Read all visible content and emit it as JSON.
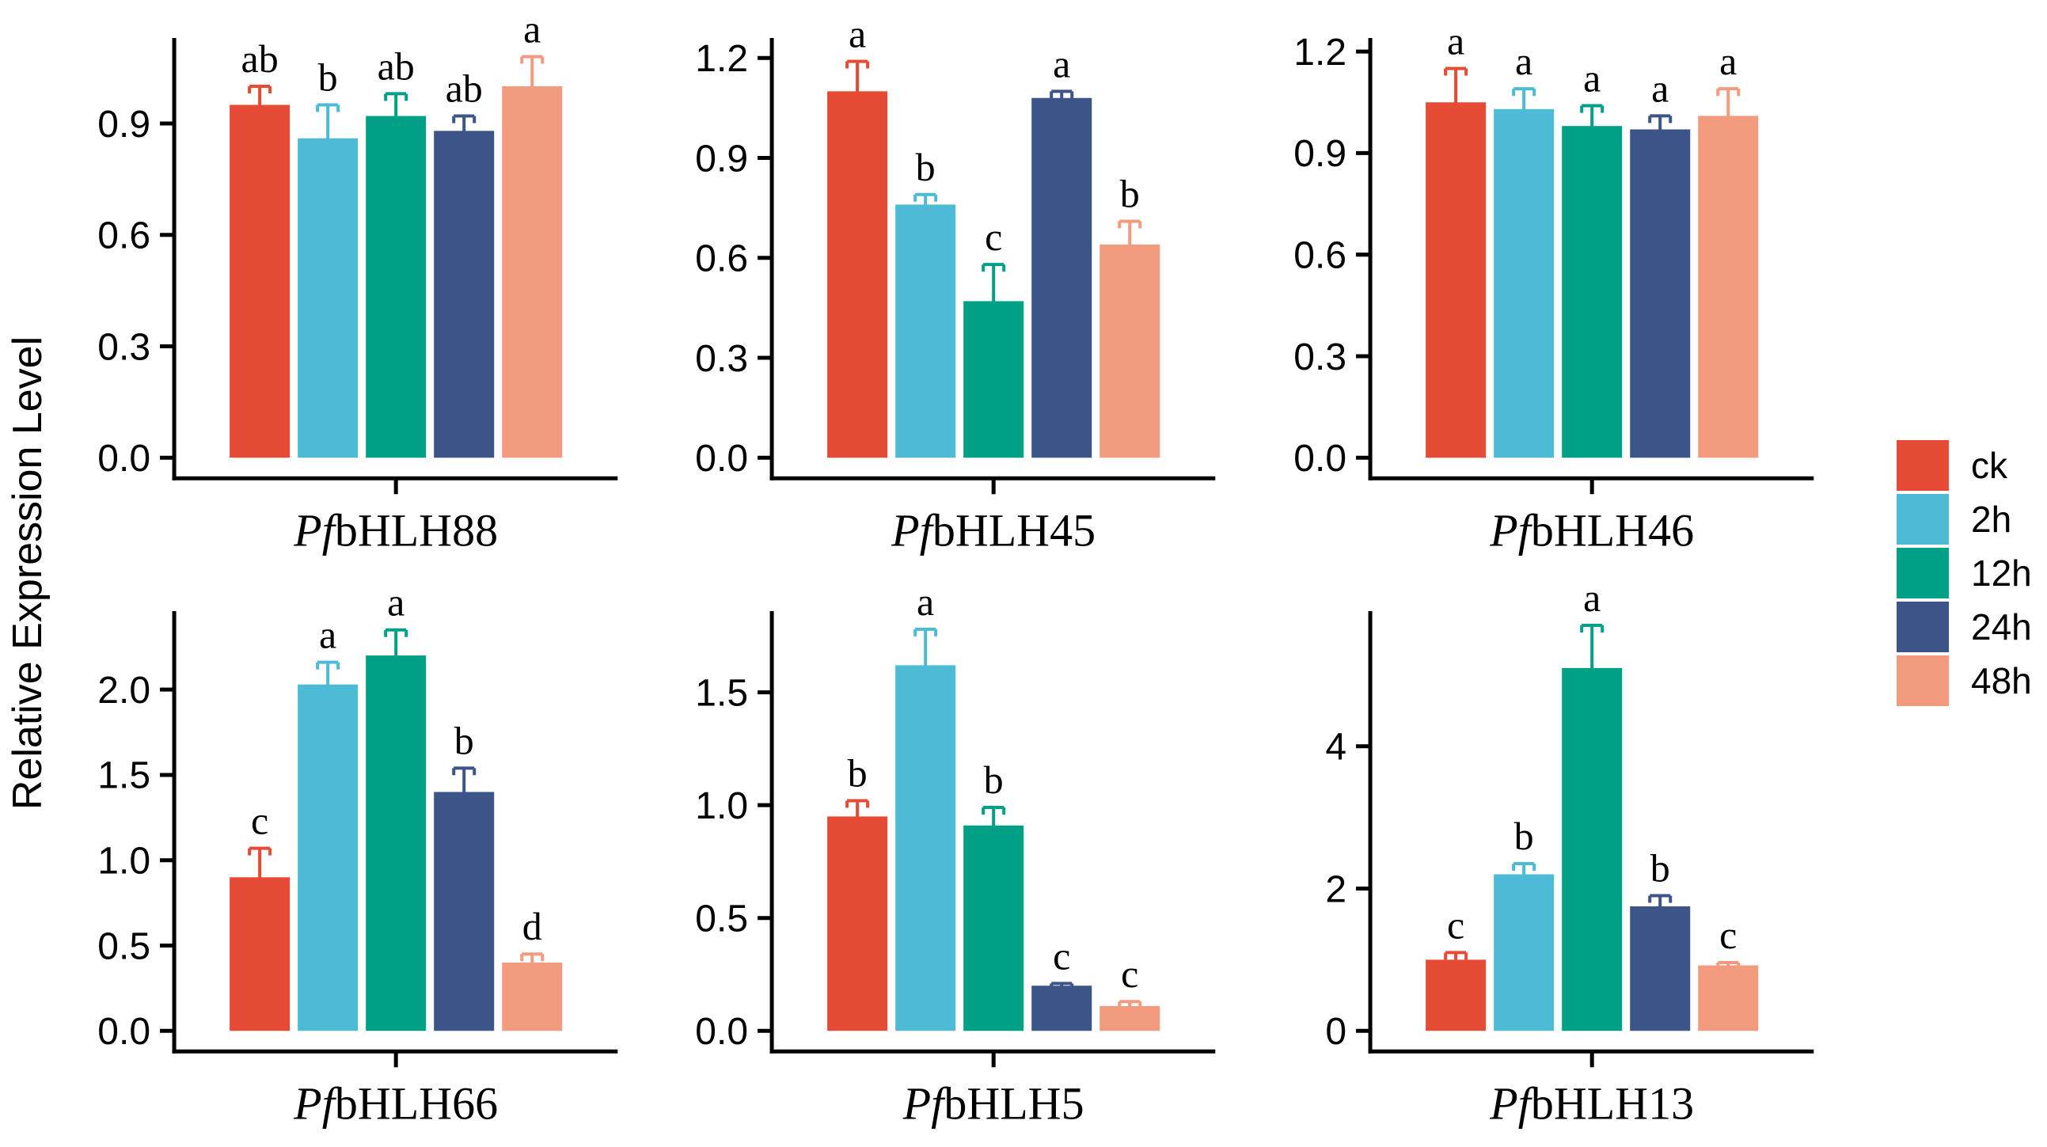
{
  "chart_data": {
    "type": "bar",
    "categories": [
      "ck",
      "2h",
      "12h",
      "24h",
      "48h"
    ],
    "series_colors": [
      "#E64B35",
      "#4DBBD5",
      "#00A087",
      "#3C5488",
      "#F39B7F"
    ],
    "ylabel": "Relative Expression Level",
    "grid": false,
    "error_bars": true,
    "legend_position": "right-center",
    "legend": {
      "items": [
        {
          "label": "ck",
          "color": "#E64B35"
        },
        {
          "label": "2h",
          "color": "#4DBBD5"
        },
        {
          "label": "12h",
          "color": "#00A087"
        },
        {
          "label": "24h",
          "color": "#3C5488"
        },
        {
          "label": "48h",
          "color": "#F39B7F"
        }
      ]
    },
    "panels": [
      {
        "gene_italic": "Pf",
        "gene_rest": "bHLH88",
        "values": [
          0.95,
          0.86,
          0.92,
          0.88,
          1.0
        ],
        "errors": [
          0.05,
          0.09,
          0.06,
          0.04,
          0.08
        ],
        "sig_letters": [
          "ab",
          "b",
          "ab",
          "ab",
          "a"
        ],
        "ytick_values": [
          0,
          0.3,
          0.6,
          0.9
        ],
        "ytick_labels": [
          "0.0",
          "0.3",
          "0.6",
          "0.9"
        ],
        "ylim": [
          0,
          1.13
        ]
      },
      {
        "gene_italic": "Pf",
        "gene_rest": "bHLH45",
        "values": [
          1.1,
          0.76,
          0.47,
          1.08,
          0.64
        ],
        "errors": [
          0.09,
          0.03,
          0.11,
          0.02,
          0.07
        ],
        "sig_letters": [
          "a",
          "b",
          "c",
          "a",
          "b"
        ],
        "ytick_values": [
          0,
          0.3,
          0.6,
          0.9,
          1.2
        ],
        "ytick_labels": [
          "0.0",
          "0.3",
          "0.6",
          "0.9",
          "1.2"
        ],
        "ylim": [
          0,
          1.26
        ]
      },
      {
        "gene_italic": "Pf",
        "gene_rest": "bHLH46",
        "values": [
          1.05,
          1.03,
          0.98,
          0.97,
          1.01
        ],
        "errors": [
          0.1,
          0.06,
          0.06,
          0.04,
          0.08
        ],
        "sig_letters": [
          "a",
          "a",
          "a",
          "a",
          "a"
        ],
        "ytick_values": [
          0,
          0.3,
          0.6,
          0.9,
          1.2
        ],
        "ytick_labels": [
          "0.0",
          "0.3",
          "0.6",
          "0.9",
          "1.2"
        ],
        "ylim": [
          0,
          1.24
        ]
      },
      {
        "gene_italic": "Pf",
        "gene_rest": "bHLH66",
        "values": [
          0.9,
          2.03,
          2.2,
          1.4,
          0.4
        ],
        "errors": [
          0.17,
          0.13,
          0.15,
          0.14,
          0.05
        ],
        "sig_letters": [
          "c",
          "a",
          "a",
          "b",
          "d"
        ],
        "ytick_values": [
          0,
          0.5,
          1.0,
          1.5,
          2.0
        ],
        "ytick_labels": [
          "0.0",
          "0.5",
          "1.0",
          "1.5",
          "2.0"
        ],
        "ylim": [
          0,
          2.46
        ]
      },
      {
        "gene_italic": "Pf",
        "gene_rest": "bHLH5",
        "values": [
          0.95,
          1.62,
          0.91,
          0.2,
          0.11
        ],
        "errors": [
          0.07,
          0.16,
          0.08,
          0.01,
          0.02
        ],
        "sig_letters": [
          "b",
          "a",
          "b",
          "c",
          "c"
        ],
        "ytick_values": [
          0,
          0.5,
          1.0,
          1.5
        ],
        "ytick_labels": [
          "0.0",
          "0.5",
          "1.0",
          "1.5"
        ],
        "ylim": [
          0,
          1.86
        ]
      },
      {
        "gene_italic": "Pf",
        "gene_rest": "bHLH13",
        "values": [
          1.0,
          2.2,
          5.1,
          1.75,
          0.92
        ],
        "errors": [
          0.1,
          0.15,
          0.6,
          0.15,
          0.04
        ],
        "sig_letters": [
          "c",
          "b",
          "a",
          "b",
          "c"
        ],
        "ytick_values": [
          0,
          2,
          4
        ],
        "ytick_labels": [
          "0",
          "2",
          "4"
        ],
        "ylim": [
          0,
          5.9
        ]
      }
    ]
  }
}
